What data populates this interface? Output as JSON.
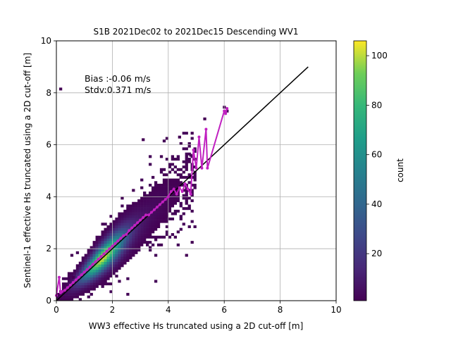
{
  "chart_data": {
    "type": "heatmap",
    "title": "S1B 2021Dec02 to 2021Dec15 Descending WV1",
    "xlabel": "WW3 effective Hs truncated using a 2D cut-off [m]",
    "ylabel": "Sentinel-1 effective Hs truncated using a 2D cut-off [m]",
    "xlim": [
      0,
      10
    ],
    "ylim": [
      0,
      10
    ],
    "xticks": [
      "0",
      "2",
      "4",
      "6",
      "8",
      "10"
    ],
    "yticks": [
      "0",
      "2",
      "4",
      "6",
      "8",
      "10"
    ],
    "grid": true,
    "annotations": [
      "Bias :-0.06 m/s",
      "Stdv:0.371 m/s"
    ],
    "colorbar": {
      "label": "count",
      "range": [
        1,
        106
      ],
      "ticks": [
        "20",
        "40",
        "60",
        "80",
        "100"
      ],
      "colormap": "viridis"
    },
    "reference_line": {
      "x": [
        0,
        9
      ],
      "y": [
        0,
        9
      ],
      "color": "#000000"
    },
    "mean_curve": {
      "color": "#c020c0",
      "x": [
        0.0,
        0.1,
        0.15,
        0.2,
        0.3,
        0.4,
        0.5,
        0.6,
        0.7,
        0.8,
        0.9,
        1.0,
        1.1,
        1.2,
        1.3,
        1.4,
        1.5,
        1.6,
        1.7,
        1.8,
        1.9,
        2.0,
        2.1,
        2.2,
        2.3,
        2.4,
        2.5,
        2.6,
        2.7,
        2.8,
        2.9,
        3.0,
        3.1,
        3.2,
        3.3,
        3.4,
        3.5,
        3.6,
        3.7,
        3.8,
        3.9,
        4.0,
        4.1,
        4.2,
        4.3,
        4.4,
        4.5,
        4.6,
        4.7,
        4.8,
        4.9,
        5.0,
        5.1,
        5.2,
        5.35,
        5.4,
        6.0,
        6.05,
        6.1
      ],
      "y": [
        0.2,
        0.9,
        0.3,
        0.35,
        0.4,
        0.5,
        0.6,
        0.7,
        0.8,
        0.9,
        1.0,
        1.1,
        1.2,
        1.3,
        1.4,
        1.5,
        1.6,
        1.7,
        1.8,
        1.9,
        2.0,
        2.1,
        2.2,
        2.3,
        2.4,
        2.5,
        2.55,
        2.7,
        2.8,
        2.9,
        3.0,
        3.1,
        3.2,
        3.3,
        3.3,
        3.4,
        3.5,
        3.6,
        3.7,
        3.8,
        3.9,
        4.0,
        4.2,
        4.3,
        4.1,
        4.35,
        4.2,
        4.5,
        4.3,
        4.1,
        5.8,
        5.1,
        6.3,
        5.1,
        6.6,
        5.1,
        7.3,
        7.2,
        7.4
      ]
    }
  }
}
